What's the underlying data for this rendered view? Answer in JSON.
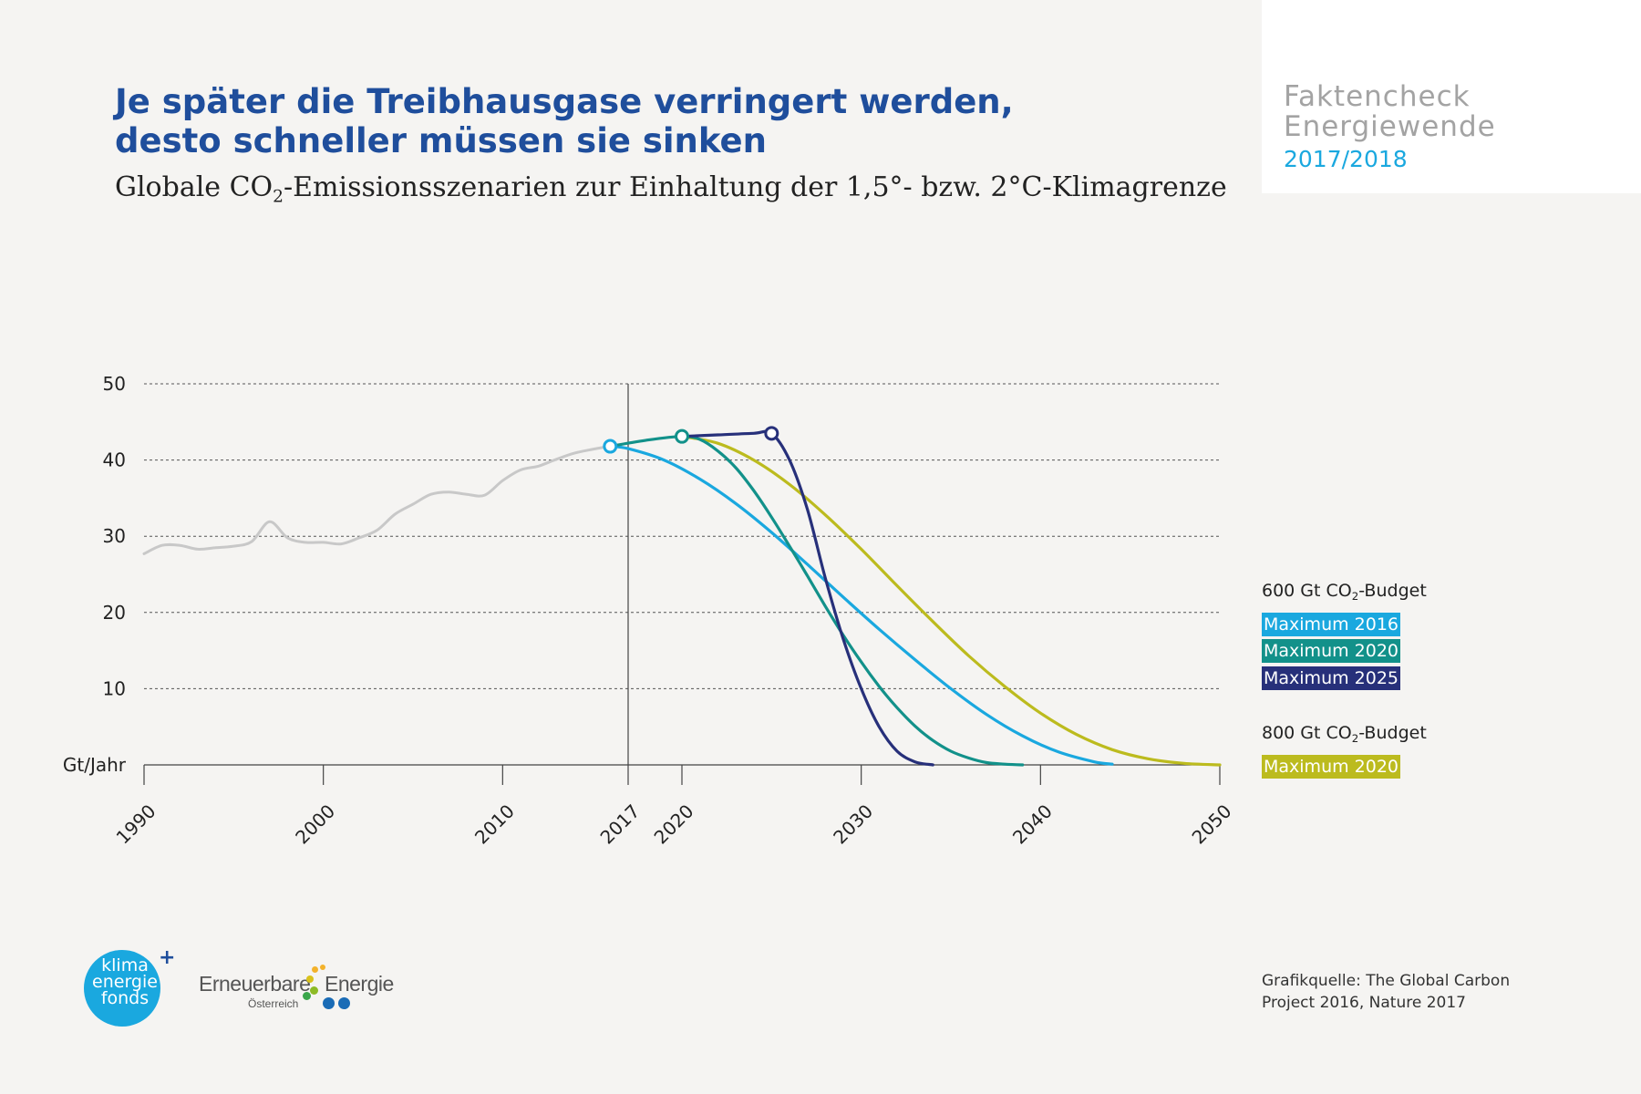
{
  "title": {
    "line1": "Je später die Treibhausgase verringert werden,",
    "line2": "desto schneller müssen sie sinken"
  },
  "subtitle": {
    "before": "Globale CO",
    "sub": "2",
    "after": "-Emissionsszenarien zur Einhaltung der 1,5°- bzw. 2°C-Klimagrenze"
  },
  "corner": {
    "line1": "Faktencheck",
    "line2": "Energiewende",
    "year": "2017/2018"
  },
  "legend": {
    "group1": {
      "before": "600 Gt CO",
      "sub": "2",
      "after": "-Budget"
    },
    "group2": {
      "before": "800 Gt CO",
      "sub": "2",
      "after": "-Budget"
    },
    "items": [
      {
        "label": "Maximum 2016",
        "color": "#1aa8df"
      },
      {
        "label": "Maximum 2020",
        "color": "#12918a"
      },
      {
        "label": "Maximum 2025",
        "color": "#27307a"
      },
      {
        "label": "Maximum 2020",
        "color": "#bcbb1e"
      }
    ]
  },
  "source": {
    "line1": "Grafikquelle: The Global Carbon",
    "line2": "Project 2016, Nature 2017"
  },
  "logos": {
    "klima": {
      "word1": "klima",
      "word2": "energie",
      "word3": "fonds",
      "plus": "+"
    },
    "ee": {
      "word1": "Erneuerbare",
      "word2": "Energie",
      "sub": "Österreich"
    }
  },
  "chart_data": {
    "type": "line",
    "xlim": [
      1990,
      2050
    ],
    "ylim": [
      0,
      50
    ],
    "ylabel": "Gt/Jahr",
    "y_ticks": [
      10,
      20,
      30,
      40,
      50
    ],
    "x_ticks": [
      1990,
      2000,
      2010,
      2017,
      2020,
      2030,
      2040,
      2050
    ],
    "reference_line_x": 2017,
    "grid": "horizontal dashed",
    "legend_position": "right",
    "series": [
      {
        "name": "",
        "color": "#c8c8c8",
        "x": [
          1990,
          1991,
          1992,
          1993,
          1994,
          1995,
          1996,
          1997,
          1998,
          1999,
          2000,
          2001,
          2002,
          2003,
          2004,
          2005,
          2006,
          2007,
          2008,
          2009,
          2010,
          2011,
          2012,
          2013,
          2014,
          2015,
          2016
        ],
        "values": [
          27.7,
          28.8,
          28.8,
          28.3,
          28.5,
          28.7,
          29.3,
          31.9,
          29.8,
          29.2,
          29.2,
          29.0,
          29.8,
          30.8,
          32.9,
          34.2,
          35.5,
          35.8,
          35.5,
          35.4,
          37.3,
          38.7,
          39.2,
          40.1,
          40.9,
          41.4,
          41.8
        ]
      },
      {
        "name": "Maximum 2016",
        "color": "#1aa8df",
        "x": [
          2016,
          2017,
          2019,
          2021,
          2023,
          2025,
          2027,
          2029,
          2031,
          2033,
          2035,
          2037,
          2039,
          2041,
          2043,
          2044
        ],
        "values": [
          41.8,
          41.5,
          40.0,
          37.5,
          34.3,
          30.5,
          26.3,
          22.0,
          17.8,
          13.8,
          10.0,
          6.6,
          3.8,
          1.7,
          0.4,
          0.1
        ]
      },
      {
        "name": "Maximum 2020",
        "color": "#12918a",
        "x": [
          2016,
          2018,
          2020,
          2021,
          2022,
          2023,
          2024,
          2025,
          2026,
          2027,
          2028,
          2029,
          2030,
          2031,
          2032,
          2033,
          2034,
          2035,
          2036,
          2037,
          2038,
          2039
        ],
        "values": [
          41.8,
          42.6,
          43.1,
          42.7,
          41.2,
          39.0,
          36.0,
          32.5,
          28.7,
          24.8,
          20.8,
          17.0,
          13.5,
          10.3,
          7.5,
          5.1,
          3.2,
          1.8,
          0.9,
          0.3,
          0.1,
          0.0
        ]
      },
      {
        "name": "Maximum 2025",
        "color": "#27307a",
        "x": [
          2020,
          2022,
          2024,
          2025,
          2026,
          2027,
          2028,
          2029,
          2030,
          2031,
          2032,
          2033,
          2034
        ],
        "values": [
          43.1,
          43.3,
          43.5,
          43.5,
          40.0,
          33.5,
          24.5,
          16.5,
          10.0,
          5.0,
          1.8,
          0.4,
          0.0
        ]
      },
      {
        "name": "Maximum 2020",
        "color": "#bcbb1e",
        "x": [
          2020,
          2022,
          2024,
          2026,
          2028,
          2030,
          2032,
          2034,
          2036,
          2038,
          2040,
          2042,
          2044,
          2046,
          2048,
          2050
        ],
        "values": [
          43.1,
          42.2,
          40.0,
          36.8,
          32.8,
          28.3,
          23.5,
          18.8,
          14.3,
          10.3,
          6.8,
          4.0,
          2.0,
          0.8,
          0.2,
          0.0
        ]
      }
    ],
    "markers": [
      {
        "x": 2016,
        "y": 41.8,
        "color": "#1aa8df"
      },
      {
        "x": 2020,
        "y": 43.1,
        "color": "#12918a"
      },
      {
        "x": 2025,
        "y": 43.5,
        "color": "#27307a"
      }
    ]
  }
}
